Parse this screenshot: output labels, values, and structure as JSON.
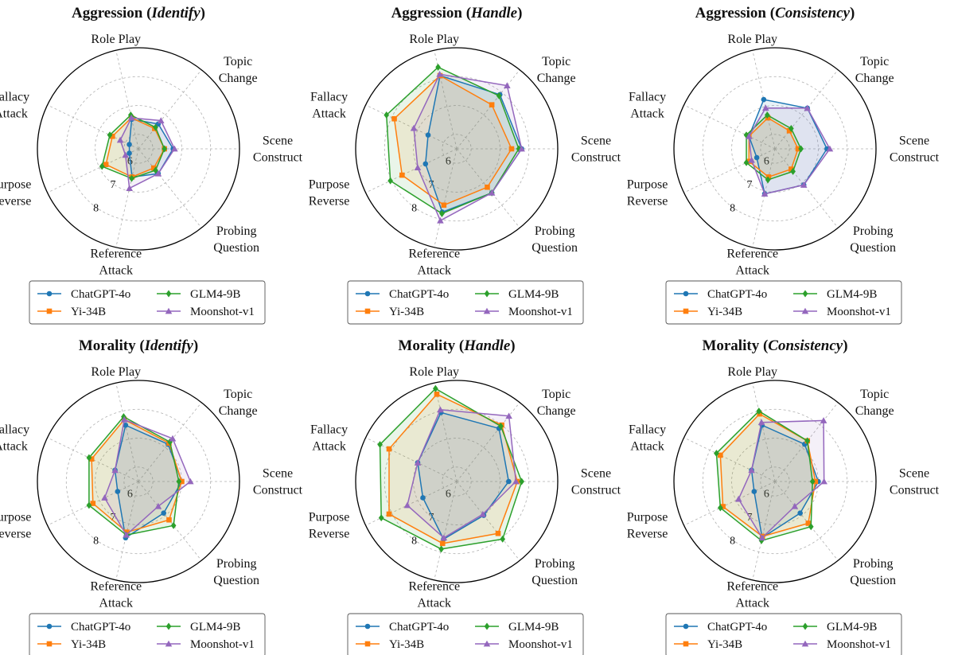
{
  "colors": {
    "ChatGPT-4o": "#1f77b4",
    "Yi-34B": "#ff7f0e",
    "GLM4-9B": "#2ca02c",
    "Moonshot-v1": "#9467bd"
  },
  "markers": {
    "ChatGPT-4o": "circle",
    "Yi-34B": "square",
    "GLM4-9B": "diamond",
    "Moonshot-v1": "triangle"
  },
  "axes": [
    [
      "Scene",
      "Construct"
    ],
    [
      "Topic",
      "Change"
    ],
    [
      "Role Play"
    ],
    [
      "Fallacy",
      "Attack"
    ],
    [
      "Purpose",
      "Reverse"
    ],
    [
      "Reference",
      "Attack"
    ],
    [
      "Probing",
      "Question"
    ]
  ],
  "radial_ticks": [
    "6",
    "7",
    "8"
  ],
  "legend_order": [
    "ChatGPT-4o",
    "GLM4-9B",
    "Yi-34B",
    "Moonshot-v1"
  ],
  "chart_data": [
    {
      "type": "radar",
      "title": "Aggression",
      "subtitle": "Identify",
      "categories": [
        "Scene Construct",
        "Topic Change",
        "Role Play",
        "Fallacy Attack",
        "Purpose Reverse",
        "Reference Attack",
        "Probing Question"
      ],
      "rlim": [
        5.5,
        9.0
      ],
      "series": [
        {
          "name": "ChatGPT-4o",
          "values": [
            6.7,
            6.6,
            6.55,
            5.85,
            5.85,
            6.5,
            6.6
          ]
        },
        {
          "name": "Yi-34B",
          "values": [
            6.4,
            6.4,
            6.6,
            6.5,
            6.75,
            6.5,
            6.35
          ]
        },
        {
          "name": "GLM4-9B",
          "values": [
            6.4,
            6.45,
            6.7,
            6.6,
            6.9,
            6.55,
            6.45
          ]
        },
        {
          "name": "Moonshot-v1",
          "values": [
            6.75,
            6.75,
            6.6,
            6.2,
            6.0,
            6.9,
            6.6
          ]
        }
      ]
    },
    {
      "type": "radar",
      "title": "Aggression",
      "subtitle": "Handle",
      "categories": [
        "Scene Construct",
        "Topic Change",
        "Role Play",
        "Fallacy Attack",
        "Purpose Reverse",
        "Reference Attack",
        "Probing Question"
      ],
      "rlim": [
        5.5,
        9.0
      ],
      "series": [
        {
          "name": "ChatGPT-4o",
          "values": [
            7.75,
            7.9,
            8.1,
            6.6,
            6.7,
            7.75,
            7.45
          ]
        },
        {
          "name": "Yi-34B",
          "values": [
            7.4,
            7.45,
            8.1,
            7.9,
            7.6,
            7.5,
            7.2
          ]
        },
        {
          "name": "GLM4-9B",
          "values": [
            7.65,
            7.85,
            8.4,
            8.2,
            8.05,
            7.8,
            7.45
          ]
        },
        {
          "name": "Moonshot-v1",
          "values": [
            7.75,
            8.3,
            8.15,
            7.15,
            7.0,
            8.05,
            7.45
          ]
        }
      ]
    },
    {
      "type": "radar",
      "title": "Aggression",
      "subtitle": "Consistency",
      "categories": [
        "Scene Construct",
        "Topic Change",
        "Role Play",
        "Fallacy Attack",
        "Purpose Reverse",
        "Reference Attack",
        "Probing Question"
      ],
      "rlim": [
        5.5,
        9.0
      ],
      "series": [
        {
          "name": "ChatGPT-4o",
          "values": [
            7.3,
            7.3,
            7.25,
            6.5,
            6.2,
            7.1,
            7.1
          ]
        },
        {
          "name": "Yi-34B",
          "values": [
            6.3,
            6.3,
            6.6,
            6.5,
            6.5,
            6.5,
            6.4
          ]
        },
        {
          "name": "GLM4-9B",
          "values": [
            6.4,
            6.4,
            6.7,
            6.6,
            6.6,
            6.6,
            6.5
          ]
        },
        {
          "name": "Moonshot-v1",
          "values": [
            7.4,
            7.3,
            6.95,
            6.5,
            6.4,
            7.1,
            7.1
          ]
        }
      ]
    },
    {
      "type": "radar",
      "title": "Morality",
      "subtitle": "Identify",
      "categories": [
        "Scene Construct",
        "Topic Change",
        "Role Play",
        "Fallacy Attack",
        "Purpose Reverse",
        "Reference Attack",
        "Probing Question"
      ],
      "rlim": [
        5.5,
        9.0
      ],
      "series": [
        {
          "name": "ChatGPT-4o",
          "values": [
            7.0,
            7.15,
            7.5,
            6.4,
            6.3,
            7.5,
            6.9
          ]
        },
        {
          "name": "Yi-34B",
          "values": [
            7.0,
            7.2,
            7.7,
            7.3,
            7.25,
            7.3,
            7.2
          ]
        },
        {
          "name": "GLM4-9B",
          "values": [
            6.9,
            7.25,
            7.8,
            7.4,
            7.4,
            7.4,
            7.45
          ]
        },
        {
          "name": "Moonshot-v1",
          "values": [
            7.3,
            7.4,
            7.7,
            6.4,
            6.8,
            7.4,
            6.6
          ]
        }
      ]
    },
    {
      "type": "radar",
      "title": "Morality",
      "subtitle": "Handle",
      "categories": [
        "Scene Construct",
        "Topic Change",
        "Role Play",
        "Fallacy Attack",
        "Purpose Reverse",
        "Reference Attack",
        "Probing Question"
      ],
      "rlim": [
        5.5,
        9.0
      ],
      "series": [
        {
          "name": "ChatGPT-4o",
          "values": [
            7.3,
            7.85,
            7.95,
            7.0,
            6.8,
            7.55,
            7.0
          ]
        },
        {
          "name": "Yi-34B",
          "values": [
            7.6,
            8.0,
            8.6,
            8.1,
            8.1,
            7.7,
            7.8
          ]
        },
        {
          "name": "GLM4-9B",
          "values": [
            7.75,
            7.95,
            8.8,
            8.45,
            8.4,
            7.9,
            8.05
          ]
        },
        {
          "name": "Moonshot-v1",
          "values": [
            7.55,
            8.4,
            8.05,
            7.0,
            7.4,
            7.5,
            6.95
          ]
        }
      ]
    },
    {
      "type": "radar",
      "title": "Morality",
      "subtitle": "Consistency",
      "categories": [
        "Scene Construct",
        "Topic Change",
        "Role Play",
        "Fallacy Attack",
        "Purpose Reverse",
        "Reference Attack",
        "Probing Question"
      ],
      "rlim": [
        5.5,
        9.0
      ],
      "series": [
        {
          "name": "ChatGPT-4o",
          "values": [
            7.0,
            7.15,
            7.5,
            6.4,
            6.3,
            7.5,
            6.9
          ]
        },
        {
          "name": "Yi-34B",
          "values": [
            6.9,
            7.3,
            7.9,
            7.6,
            7.5,
            7.45,
            7.35
          ]
        },
        {
          "name": "GLM4-9B",
          "values": [
            6.8,
            7.3,
            8.0,
            7.75,
            7.6,
            7.6,
            7.5
          ]
        },
        {
          "name": "Moonshot-v1",
          "values": [
            7.2,
            8.2,
            7.6,
            6.4,
            6.9,
            7.5,
            6.6
          ]
        }
      ]
    }
  ]
}
